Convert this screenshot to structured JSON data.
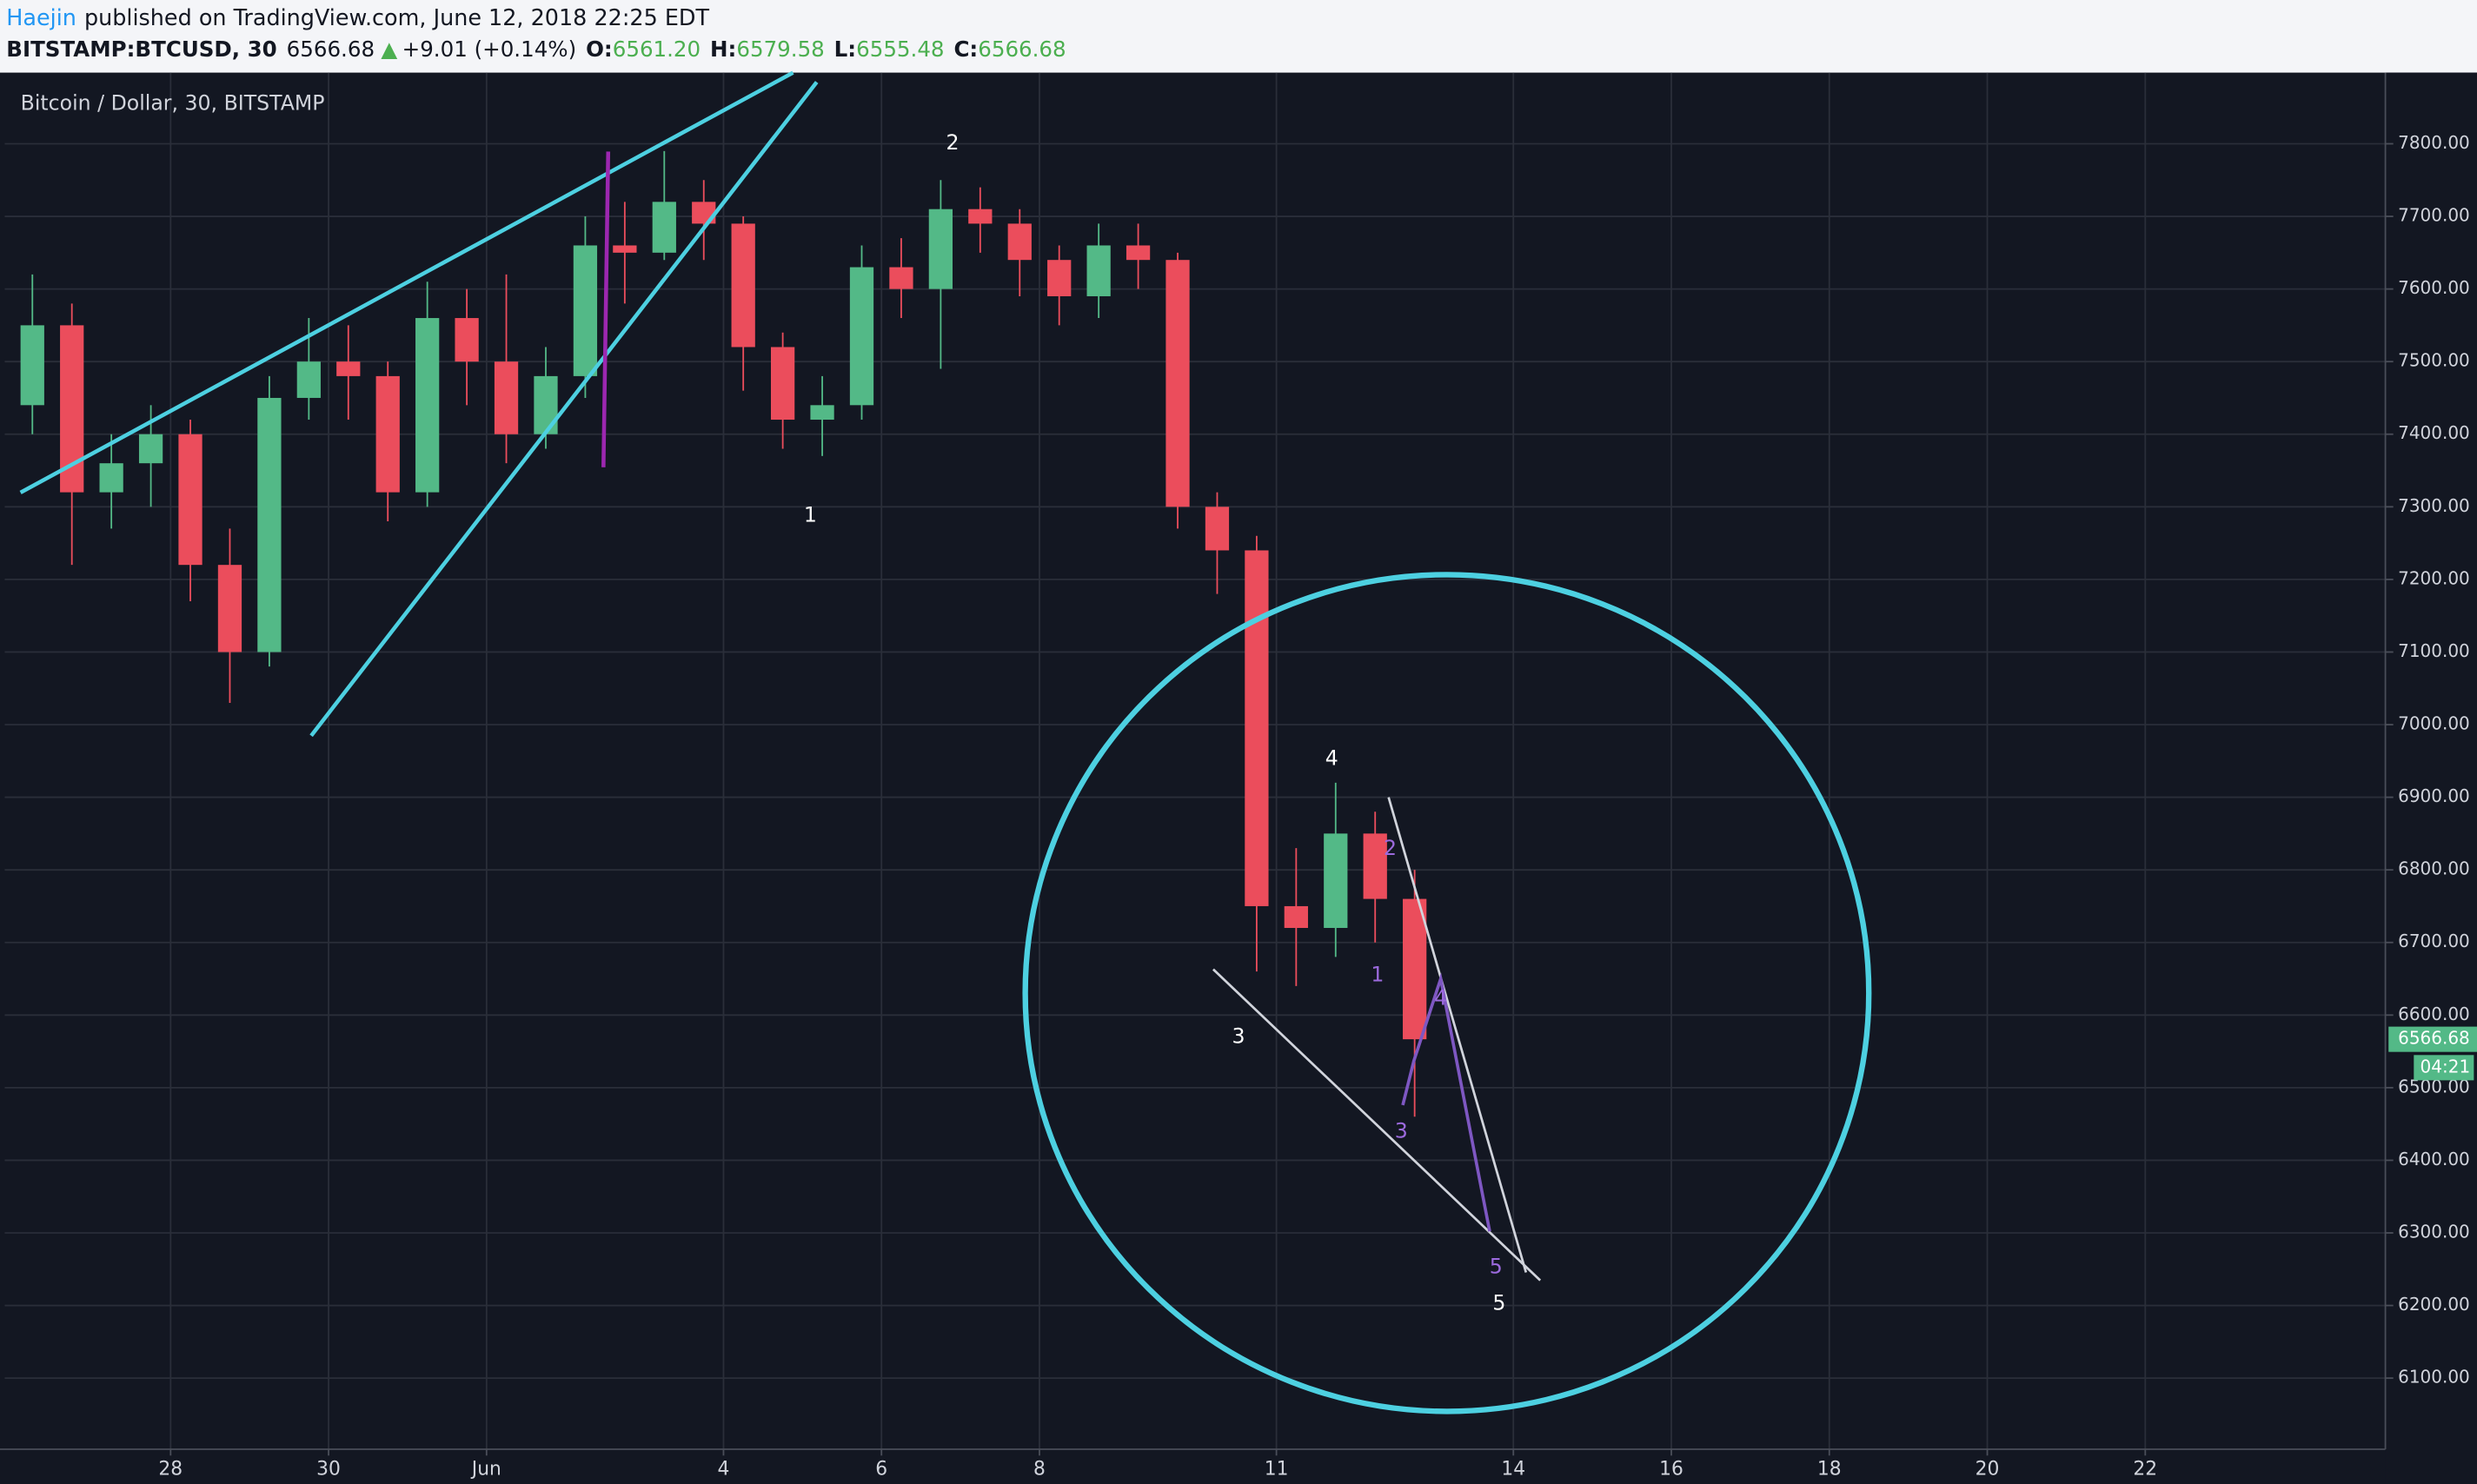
{
  "header": {
    "author": "Haejin",
    "published": "published on TradingView.com, June 12, 2018 22:25 EDT",
    "symbol": "BITSTAMP:BTCUSD, 30",
    "last": "6566.68",
    "arrow": "▲",
    "change": "+9.01 (+0.14%)",
    "ohlc": [
      {
        "label": "O:",
        "value": "6561.20"
      },
      {
        "label": "H:",
        "value": "6579.58"
      },
      {
        "label": "L:",
        "value": "6555.48"
      },
      {
        "label": "C:",
        "value": "6566.68"
      }
    ]
  },
  "chart_data": {
    "type": "candlestick",
    "title": "Bitcoin / Dollar, 30, BITSTAMP",
    "x": [
      26.25,
      26.75,
      27.25,
      27.75,
      28.25,
      28.75,
      29.25,
      29.75,
      30.25,
      30.75,
      31.25,
      31.75,
      32.25,
      32.75,
      33.25,
      33.75,
      34.25,
      34.75,
      35.25,
      35.75,
      36.25,
      36.75,
      37.25,
      37.75,
      38.25,
      38.75,
      39.25,
      39.75,
      40.25,
      40.75,
      41.25,
      41.75,
      42.25,
      42.75,
      43.25,
      43.75
    ],
    "open": [
      7440,
      7550,
      7320,
      7360,
      7400,
      7220,
      7100,
      7450,
      7500,
      7480,
      7320,
      7560,
      7500,
      7400,
      7480,
      7660,
      7650,
      7720,
      7690,
      7520,
      7420,
      7440,
      7630,
      7600,
      7710,
      7690,
      7640,
      7590,
      7660,
      7640,
      7300,
      7240,
      6750,
      6720,
      6850,
      6760
    ],
    "high": [
      7620,
      7580,
      7400,
      7440,
      7420,
      7270,
      7480,
      7560,
      7550,
      7500,
      7610,
      7600,
      7620,
      7520,
      7700,
      7720,
      7790,
      7750,
      7700,
      7540,
      7480,
      7660,
      7670,
      7750,
      7740,
      7710,
      7660,
      7690,
      7690,
      7650,
      7320,
      7260,
      6830,
      6920,
      6880,
      6800
    ],
    "low": [
      7400,
      7220,
      7270,
      7300,
      7170,
      7030,
      7080,
      7420,
      7420,
      7280,
      7300,
      7440,
      7360,
      7380,
      7450,
      7580,
      7640,
      7640,
      7460,
      7380,
      7370,
      7420,
      7560,
      7490,
      7650,
      7590,
      7550,
      7560,
      7600,
      7270,
      7180,
      6660,
      6640,
      6680,
      6700,
      6460
    ],
    "close": [
      7550,
      7320,
      7360,
      7400,
      7220,
      7100,
      7450,
      7500,
      7480,
      7320,
      7560,
      7500,
      7400,
      7480,
      7660,
      7650,
      7720,
      7690,
      7520,
      7420,
      7440,
      7630,
      7600,
      7710,
      7690,
      7640,
      7590,
      7660,
      7640,
      7300,
      7240,
      6750,
      6720,
      6850,
      6760,
      6566.68
    ],
    "up_color": "#53b987",
    "down_color": "#eb4d5c",
    "xlim": [
      25.9,
      56.04
    ],
    "xticks": [
      {
        "value": 28,
        "label": "28"
      },
      {
        "value": 30,
        "label": "30"
      },
      {
        "value": 32,
        "label": "Jun"
      },
      {
        "value": 35,
        "label": "4"
      },
      {
        "value": 37,
        "label": "6"
      },
      {
        "value": 39,
        "label": "8"
      },
      {
        "value": 42,
        "label": "11"
      },
      {
        "value": 45,
        "label": "14"
      },
      {
        "value": 47,
        "label": "16"
      },
      {
        "value": 49,
        "label": "18"
      },
      {
        "value": 51,
        "label": "20"
      },
      {
        "value": 53,
        "label": "22"
      }
    ],
    "ylim": [
      6002,
      7898
    ],
    "yticks": [
      {
        "value": 6100,
        "label": "6100.00"
      },
      {
        "value": 6200,
        "label": "6200.00"
      },
      {
        "value": 6300,
        "label": "6300.00"
      },
      {
        "value": 6400,
        "label": "6400.00"
      },
      {
        "value": 6500,
        "label": "6500.00"
      },
      {
        "value": 6600,
        "label": "6600.00"
      },
      {
        "value": 6700,
        "label": "6700.00"
      },
      {
        "value": 6800,
        "label": "6800.00"
      },
      {
        "value": 6900,
        "label": "6900.00"
      },
      {
        "value": 7000,
        "label": "7000.00"
      },
      {
        "value": 7100,
        "label": "7100.00"
      },
      {
        "value": 7200,
        "label": "7200.00"
      },
      {
        "value": 7300,
        "label": "7300.00"
      },
      {
        "value": 7400,
        "label": "7400.00"
      },
      {
        "value": 7500,
        "label": "7500.00"
      },
      {
        "value": 7600,
        "label": "7600.00"
      },
      {
        "value": 7700,
        "label": "7700.00"
      },
      {
        "value": 7800,
        "label": "7800.00"
      }
    ],
    "grid": true,
    "last_price_label": "6566.68",
    "countdown": "04:21",
    "annotations": [
      "1",
      "2",
      "3",
      "4",
      "5",
      "1",
      "2",
      "3",
      "4",
      "5"
    ]
  }
}
